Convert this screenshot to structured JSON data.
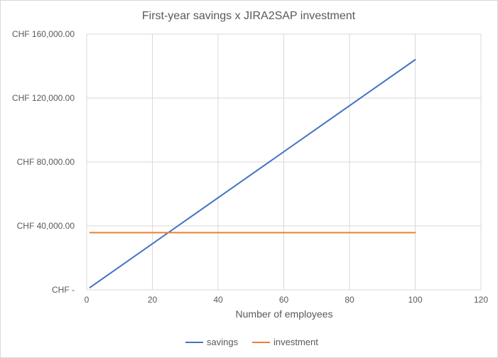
{
  "chart_data": {
    "type": "line",
    "title": "First-year savings x JIRA2SAP investment",
    "xlabel": "Number of employees",
    "ylabel": "",
    "xlim": [
      0,
      120
    ],
    "ylim": [
      0,
      160000
    ],
    "x_ticks": [
      "0",
      "20",
      "40",
      "60",
      "80",
      "100",
      "120"
    ],
    "y_ticks": [
      "CHF -",
      "CHF 40,000.00",
      "CHF 80,000.00",
      "CHF 120,000.00",
      "CHF 160,000.00"
    ],
    "y_tick_values": [
      0,
      40000,
      80000,
      120000,
      160000
    ],
    "x_tick_values": [
      0,
      20,
      40,
      60,
      80,
      100,
      120
    ],
    "grid": true,
    "legend_position": "bottom",
    "series": [
      {
        "name": "savings",
        "color": "#4472c4",
        "x": [
          1,
          100
        ],
        "y": [
          1440,
          144000
        ]
      },
      {
        "name": "investment",
        "color": "#ed7d31",
        "x": [
          1,
          100
        ],
        "y": [
          35800,
          35800
        ]
      }
    ]
  }
}
